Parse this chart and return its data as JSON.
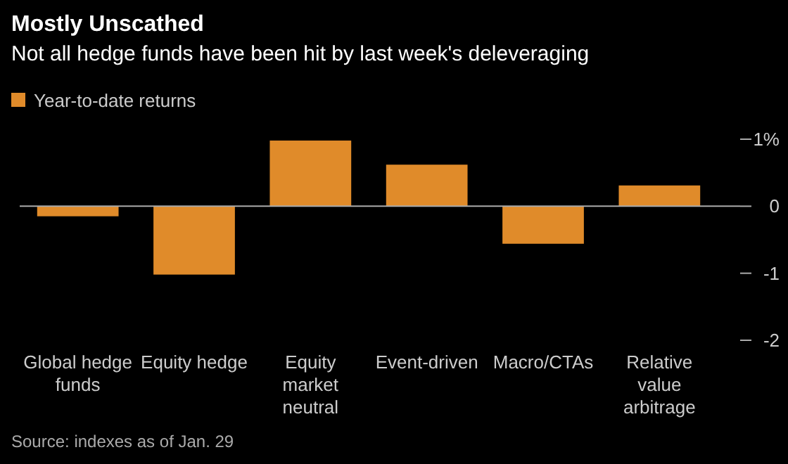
{
  "chart_data": {
    "type": "bar",
    "title": "Mostly Unscathed",
    "subtitle": "Not all hedge funds have been hit by last week's deleveraging",
    "categories": [
      "Global hedge funds",
      "Equity hedge",
      "Equity market neutral",
      "Event-driven",
      "Macro/CTAs",
      "Relative value arbitrage"
    ],
    "series": [
      {
        "name": "Year-to-date returns",
        "color": "#e08b2a",
        "values": [
          -0.15,
          -1.02,
          0.98,
          0.62,
          -0.56,
          0.31
        ]
      }
    ],
    "ylim": [
      -2,
      1
    ],
    "ref_lines": [
      {
        "axis": "y",
        "value": 0,
        "color": "#aaaaaa"
      }
    ],
    "yticks": [
      {
        "value": 1,
        "label": "1%"
      },
      0,
      -1,
      -2
    ],
    "grid": false,
    "legend": "top left",
    "annotations": [
      "Source: indexes as of Jan. 29"
    ]
  }
}
